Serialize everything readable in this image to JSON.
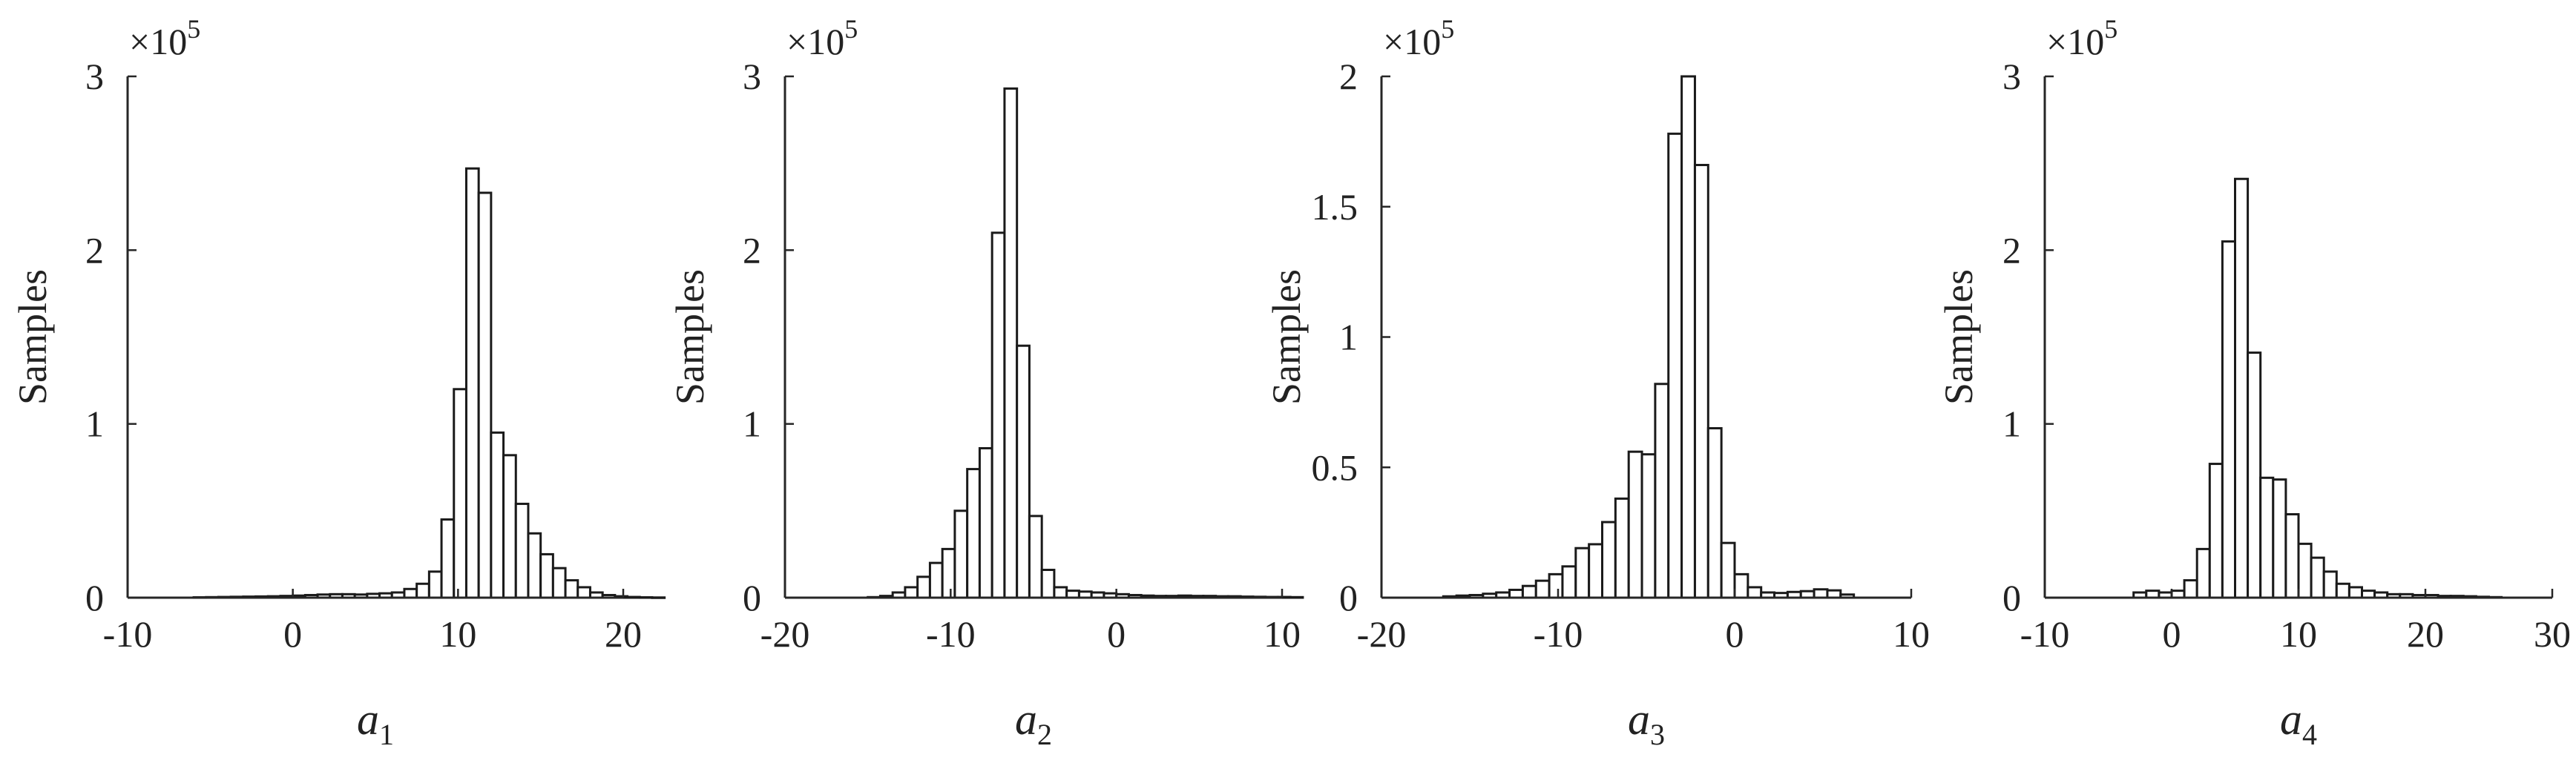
{
  "chart_data": [
    {
      "type": "bar",
      "histogram": true,
      "xlabel": "a",
      "xlabel_subscript": "1",
      "ylabel": "Samples",
      "y_multiplier": "×10",
      "y_multiplier_exponent": "5",
      "xlim": [
        -10,
        20
      ],
      "ylim": [
        0,
        3
      ],
      "xticks": [
        "-10",
        "0",
        "10",
        "20"
      ],
      "yticks": [
        "0",
        "1",
        "2",
        "3"
      ],
      "bin_width": 0.75,
      "bin_start": -6.0,
      "values": [
        0.002,
        0.003,
        0.004,
        0.005,
        0.006,
        0.007,
        0.008,
        0.01,
        0.012,
        0.015,
        0.018,
        0.02,
        0.02,
        0.018,
        0.022,
        0.025,
        0.03,
        0.05,
        0.08,
        0.15,
        0.45,
        1.2,
        2.47,
        2.33,
        0.95,
        0.82,
        0.54,
        0.37,
        0.25,
        0.17,
        0.1,
        0.06,
        0.03,
        0.015,
        0.008,
        0.004,
        0.002,
        0.001
      ]
    },
    {
      "type": "bar",
      "histogram": true,
      "xlabel": "a",
      "xlabel_subscript": "2",
      "ylabel": "Samples",
      "y_multiplier": "×10",
      "y_multiplier_exponent": "5",
      "xlim": [
        -20,
        10
      ],
      "ylim": [
        0,
        3
      ],
      "xticks": [
        "-20",
        "-10",
        "0",
        "10"
      ],
      "yticks": [
        "0",
        "1",
        "2",
        "3"
      ],
      "bin_width": 0.75,
      "bin_start": -15.0,
      "values": [
        0.003,
        0.01,
        0.03,
        0.06,
        0.12,
        0.2,
        0.28,
        0.5,
        0.74,
        0.86,
        2.1,
        2.93,
        1.45,
        0.47,
        0.16,
        0.06,
        0.04,
        0.035,
        0.03,
        0.025,
        0.02,
        0.015,
        0.012,
        0.01,
        0.01,
        0.012,
        0.01,
        0.01,
        0.008,
        0.008,
        0.006,
        0.005,
        0.004,
        0.004,
        0.003
      ]
    },
    {
      "type": "bar",
      "histogram": true,
      "xlabel": "a",
      "xlabel_subscript": "3",
      "ylabel": "Samples",
      "y_multiplier": "×10",
      "y_multiplier_exponent": "5",
      "xlim": [
        -20,
        10
      ],
      "ylim": [
        0,
        2
      ],
      "xticks": [
        "-20",
        "-10",
        "0",
        "10"
      ],
      "yticks": [
        "0",
        "0.5",
        "1",
        "1.5",
        "2"
      ],
      "bin_width": 0.75,
      "bin_start": -16.5,
      "values": [
        0.005,
        0.008,
        0.01,
        0.015,
        0.02,
        0.03,
        0.045,
        0.065,
        0.09,
        0.12,
        0.19,
        0.205,
        0.29,
        0.38,
        0.56,
        0.55,
        0.82,
        1.78,
        2.0,
        1.66,
        0.65,
        0.21,
        0.09,
        0.04,
        0.02,
        0.018,
        0.022,
        0.025,
        0.032,
        0.028,
        0.012
      ]
    },
    {
      "type": "bar",
      "histogram": true,
      "xlabel": "a",
      "xlabel_subscript": "4",
      "ylabel": "Samples",
      "y_multiplier": "×10",
      "y_multiplier_exponent": "5",
      "xlim": [
        -10,
        30
      ],
      "ylim": [
        0,
        3
      ],
      "xticks": [
        "-10",
        "0",
        "10",
        "20",
        "30"
      ],
      "yticks": [
        "0",
        "1",
        "2",
        "3"
      ],
      "bin_width": 1.0,
      "bin_start": -3.0,
      "values": [
        0.03,
        0.04,
        0.03,
        0.04,
        0.1,
        0.28,
        0.77,
        2.05,
        2.41,
        1.41,
        0.69,
        0.68,
        0.48,
        0.31,
        0.23,
        0.15,
        0.08,
        0.06,
        0.04,
        0.03,
        0.02,
        0.02,
        0.015,
        0.015,
        0.01,
        0.01,
        0.008,
        0.005,
        0.003
      ]
    }
  ]
}
